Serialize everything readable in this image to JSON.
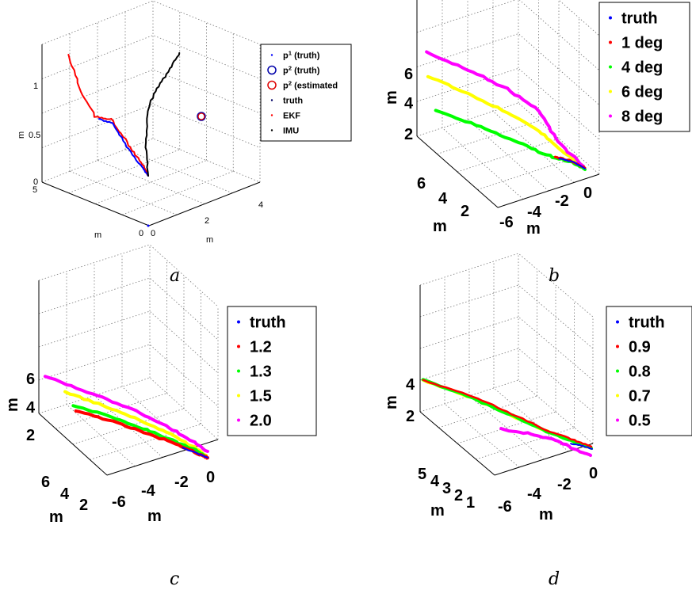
{
  "figure": {
    "panels": [
      {
        "id": "a",
        "caption": "a"
      },
      {
        "id": "b",
        "caption": "b"
      },
      {
        "id": "c",
        "caption": "c"
      },
      {
        "id": "d",
        "caption": "d"
      }
    ]
  },
  "chart_data": [
    {
      "panel": "a",
      "type": "line",
      "projection": "3d",
      "title": "",
      "xlabel": "m",
      "ylabel": "m",
      "zlabel": "m",
      "x_ticks": [
        "0",
        "2",
        "4"
      ],
      "y_ticks": [
        "0",
        "5"
      ],
      "z_ticks": [
        "0",
        "0.5",
        "1"
      ],
      "grid": true,
      "legend": {
        "placement": "right",
        "entries": [
          {
            "label": "p",
            "sup": "1",
            "suffix": " (truth)",
            "marker": "point",
            "color": "#0000ff"
          },
          {
            "label": "p",
            "sup": "2",
            "suffix": " (truth)",
            "marker": "circle",
            "color": "#0000aa"
          },
          {
            "label": "p",
            "sup": "2",
            "suffix": " (estimated",
            "marker": "circle",
            "color": "#dd0000"
          },
          {
            "label": "truth",
            "sup": "",
            "suffix": "",
            "marker": "point",
            "color": "#000066"
          },
          {
            "label": "EKF",
            "sup": "",
            "suffix": "",
            "marker": "point",
            "color": "#ff0000"
          },
          {
            "label": "IMU",
            "sup": "",
            "suffix": "",
            "marker": "point",
            "color": "#000000"
          }
        ]
      },
      "series": [
        {
          "name": "truth",
          "color": "#0000ff"
        },
        {
          "name": "EKF",
          "color": "#ff0000"
        },
        {
          "name": "IMU",
          "color": "#000000"
        }
      ]
    },
    {
      "panel": "b",
      "type": "line",
      "projection": "3d",
      "title": "",
      "xlabel": "m",
      "ylabel": "m",
      "zlabel": "m",
      "x_ticks": [
        "-6",
        "-4",
        "-2",
        "0"
      ],
      "y_ticks": [
        "2",
        "4",
        "6"
      ],
      "z_ticks": [
        "2",
        "4",
        "6"
      ],
      "grid": true,
      "legend": {
        "placement": "top-right",
        "entries": [
          {
            "label": "truth",
            "color": "#0000ff"
          },
          {
            "label": "1 deg",
            "color": "#ff0000"
          },
          {
            "label": "4 deg",
            "color": "#00ff00"
          },
          {
            "label": "6 deg",
            "color": "#ffff00"
          },
          {
            "label": "8 deg",
            "color": "#ff00ff"
          }
        ]
      },
      "series": [
        {
          "name": "truth",
          "color": "#0000ff"
        },
        {
          "name": "1 deg",
          "color": "#ff0000"
        },
        {
          "name": "4 deg",
          "color": "#00ff00"
        },
        {
          "name": "6 deg",
          "color": "#ffff00"
        },
        {
          "name": "8 deg",
          "color": "#ff00ff"
        }
      ]
    },
    {
      "panel": "c",
      "type": "line",
      "projection": "3d",
      "title": "",
      "xlabel": "m",
      "ylabel": "m",
      "zlabel": "m",
      "x_ticks": [
        "-6",
        "-4",
        "-2",
        "0"
      ],
      "y_ticks": [
        "2",
        "4",
        "6"
      ],
      "z_ticks": [
        "2",
        "4",
        "6"
      ],
      "grid": true,
      "legend": {
        "placement": "top-right",
        "entries": [
          {
            "label": "truth",
            "color": "#0000ff"
          },
          {
            "label": "1.2",
            "color": "#ff0000"
          },
          {
            "label": "1.3",
            "color": "#00ff00"
          },
          {
            "label": "1.5",
            "color": "#ffff00"
          },
          {
            "label": "2.0",
            "color": "#ff00ff"
          }
        ]
      },
      "series": [
        {
          "name": "truth",
          "color": "#0000ff"
        },
        {
          "name": "1.2",
          "color": "#ff0000"
        },
        {
          "name": "1.3",
          "color": "#00ff00"
        },
        {
          "name": "1.5",
          "color": "#ffff00"
        },
        {
          "name": "2.0",
          "color": "#ff00ff"
        }
      ]
    },
    {
      "panel": "d",
      "type": "line",
      "projection": "3d",
      "title": "",
      "xlabel": "m",
      "ylabel": "m",
      "zlabel": "m",
      "x_ticks": [
        "-6",
        "-4",
        "-2",
        "0"
      ],
      "y_ticks": [
        "1",
        "2",
        "3",
        "4",
        "5"
      ],
      "z_ticks": [
        "2",
        "4"
      ],
      "grid": true,
      "legend": {
        "placement": "top-right",
        "entries": [
          {
            "label": "truth",
            "color": "#0000ff"
          },
          {
            "label": "0.9",
            "color": "#ff0000"
          },
          {
            "label": "0.8",
            "color": "#00ff00"
          },
          {
            "label": "0.7",
            "color": "#ffff00"
          },
          {
            "label": "0.5",
            "color": "#ff00ff"
          }
        ]
      },
      "series": [
        {
          "name": "truth",
          "color": "#0000ff"
        },
        {
          "name": "0.9",
          "color": "#ff0000"
        },
        {
          "name": "0.8",
          "color": "#00ff00"
        },
        {
          "name": "0.7",
          "color": "#ffff00"
        },
        {
          "name": "0.5",
          "color": "#ff00ff"
        }
      ]
    }
  ]
}
